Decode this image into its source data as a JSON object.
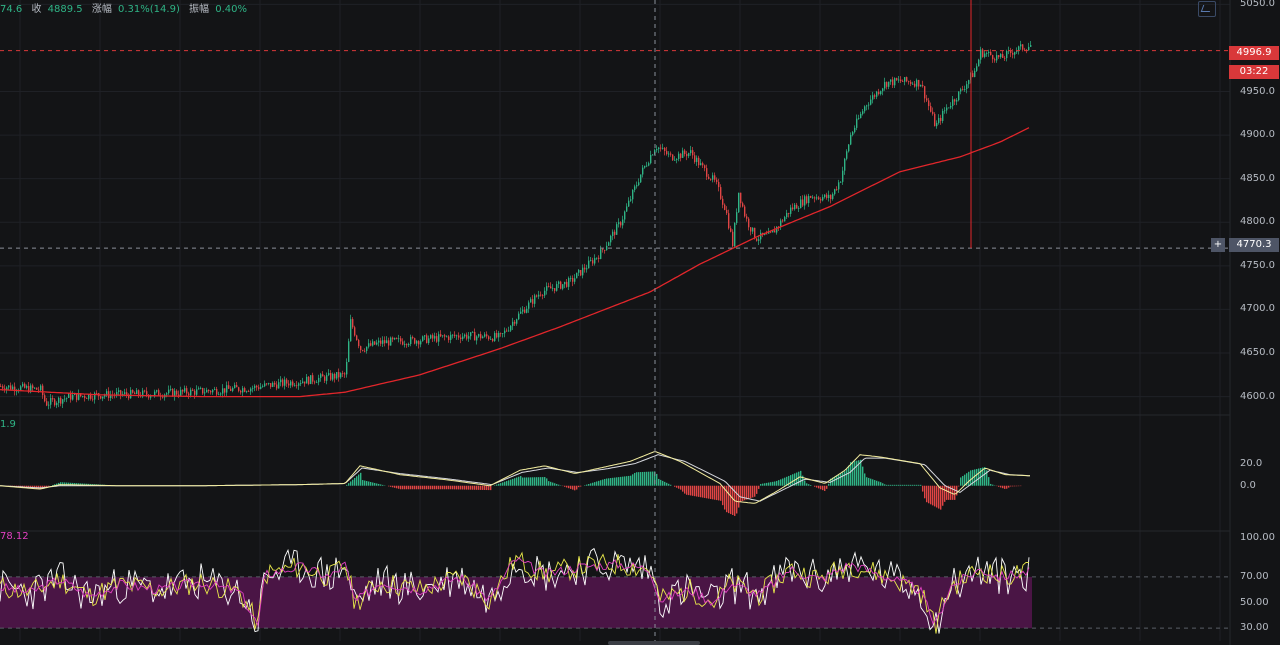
{
  "header": {
    "open_frag": "74.6",
    "close_label": "收",
    "close_value": "4889.5",
    "change_label": "涨幅",
    "change_value": "0.31%(14.9)",
    "amplitude_label": "振幅",
    "amplitude_value": "0.40%"
  },
  "colors": {
    "background": "#131416",
    "up": "#2fb486",
    "down": "#e04545",
    "ma_line": "#e2262b",
    "price_tag": "#d9383a",
    "crosshair_tag": "#4e5566",
    "macd_fast": "#f4eea0",
    "macd_slow": "#d7d9df",
    "rsi_band": "#4a1545",
    "rsi_line1": "#ffffff",
    "rsi_line2": "#e8e84a",
    "rsi_line3": "#e040c0"
  },
  "price_pane": {
    "ticks": [
      "5050.0",
      "4950.0",
      "4900.0",
      "4850.0",
      "4800.0",
      "4750.0",
      "4700.0",
      "4650.0",
      "4600.0"
    ],
    "current_price": "4996.9",
    "countdown": "03:22",
    "crosshair_price": "4770.3"
  },
  "macd_pane": {
    "value_label": "1.9",
    "ticks": [
      "20.0",
      "0.0"
    ]
  },
  "rsi_pane": {
    "value_label": "78.12",
    "ticks": [
      "100.00",
      "70.00",
      "50.00",
      "30.00"
    ]
  },
  "chart_data": [
    {
      "type": "candlestick",
      "name": "price",
      "ylim": [
        4580,
        5055
      ],
      "ticks": [
        5050,
        4950,
        4900,
        4850,
        4800,
        4750,
        4700,
        4650,
        4600
      ],
      "anchors": [
        [
          0,
          4612
        ],
        [
          40,
          4608
        ],
        [
          45,
          4592
        ],
        [
          70,
          4600
        ],
        [
          100,
          4602
        ],
        [
          150,
          4603
        ],
        [
          200,
          4606
        ],
        [
          250,
          4610
        ],
        [
          300,
          4618
        ],
        [
          345,
          4625
        ],
        [
          350,
          4686
        ],
        [
          360,
          4655
        ],
        [
          380,
          4662
        ],
        [
          420,
          4665
        ],
        [
          460,
          4670
        ],
        [
          500,
          4668
        ],
        [
          515,
          4690
        ],
        [
          540,
          4720
        ],
        [
          570,
          4732
        ],
        [
          600,
          4765
        ],
        [
          620,
          4800
        ],
        [
          640,
          4855
        ],
        [
          655,
          4888
        ],
        [
          670,
          4875
        ],
        [
          690,
          4880
        ],
        [
          700,
          4865
        ],
        [
          715,
          4845
        ],
        [
          725,
          4815
        ],
        [
          732,
          4775
        ],
        [
          738,
          4835
        ],
        [
          745,
          4805
        ],
        [
          755,
          4782
        ],
        [
          770,
          4785
        ],
        [
          790,
          4815
        ],
        [
          810,
          4830
        ],
        [
          830,
          4828
        ],
        [
          840,
          4850
        ],
        [
          850,
          4900
        ],
        [
          865,
          4935
        ],
        [
          885,
          4960
        ],
        [
          900,
          4962
        ],
        [
          920,
          4960
        ],
        [
          935,
          4910
        ],
        [
          945,
          4930
        ],
        [
          960,
          4950
        ],
        [
          975,
          4975
        ],
        [
          980,
          4995
        ],
        [
          990,
          4992
        ],
        [
          1000,
          4988
        ],
        [
          1015,
          4998
        ],
        [
          1030,
          5003
        ]
      ],
      "ma_anchors": [
        [
          0,
          4608
        ],
        [
          100,
          4602
        ],
        [
          200,
          4600
        ],
        [
          300,
          4600
        ],
        [
          345,
          4605
        ],
        [
          420,
          4625
        ],
        [
          500,
          4655
        ],
        [
          560,
          4680
        ],
        [
          650,
          4720
        ],
        [
          700,
          4752
        ],
        [
          760,
          4785
        ],
        [
          830,
          4818
        ],
        [
          900,
          4858
        ],
        [
          960,
          4875
        ],
        [
          1000,
          4892
        ],
        [
          1030,
          4909
        ]
      ],
      "current_price": 4996.9,
      "crosshair_price": 4770.3
    },
    {
      "type": "macd",
      "name": "macd",
      "ylim": [
        -40,
        63
      ],
      "ticks": [
        20,
        0
      ],
      "fast_anchors": [
        [
          0,
          0
        ],
        [
          40,
          -3
        ],
        [
          60,
          1
        ],
        [
          120,
          0
        ],
        [
          200,
          0
        ],
        [
          300,
          1
        ],
        [
          345,
          2
        ],
        [
          360,
          18
        ],
        [
          400,
          10
        ],
        [
          450,
          5
        ],
        [
          490,
          0
        ],
        [
          520,
          14
        ],
        [
          545,
          18
        ],
        [
          575,
          11
        ],
        [
          600,
          16
        ],
        [
          630,
          22
        ],
        [
          655,
          31
        ],
        [
          680,
          22
        ],
        [
          720,
          2
        ],
        [
          735,
          -14
        ],
        [
          755,
          -16
        ],
        [
          775,
          -6
        ],
        [
          800,
          8
        ],
        [
          825,
          2
        ],
        [
          845,
          14
        ],
        [
          860,
          28
        ],
        [
          880,
          26
        ],
        [
          920,
          20
        ],
        [
          940,
          -2
        ],
        [
          955,
          -8
        ],
        [
          970,
          5
        ],
        [
          985,
          16
        ],
        [
          1005,
          10
        ],
        [
          1030,
          9
        ]
      ],
      "slow_anchors": [
        [
          0,
          0
        ],
        [
          40,
          -2
        ],
        [
          60,
          0
        ],
        [
          120,
          0
        ],
        [
          200,
          0
        ],
        [
          300,
          1
        ],
        [
          345,
          2
        ],
        [
          362,
          16
        ],
        [
          400,
          11
        ],
        [
          450,
          6
        ],
        [
          492,
          1
        ],
        [
          522,
          12
        ],
        [
          548,
          16
        ],
        [
          578,
          12
        ],
        [
          605,
          15
        ],
        [
          635,
          20
        ],
        [
          658,
          28
        ],
        [
          685,
          22
        ],
        [
          725,
          4
        ],
        [
          740,
          -10
        ],
        [
          760,
          -14
        ],
        [
          780,
          -5
        ],
        [
          805,
          6
        ],
        [
          830,
          3
        ],
        [
          850,
          12
        ],
        [
          865,
          25
        ],
        [
          885,
          25
        ],
        [
          925,
          19
        ],
        [
          945,
          0
        ],
        [
          960,
          -6
        ],
        [
          975,
          4
        ],
        [
          990,
          14
        ],
        [
          1010,
          10
        ],
        [
          1030,
          9
        ]
      ]
    },
    {
      "type": "rsi",
      "name": "rsi",
      "ylim": [
        20,
        105
      ],
      "ticks": [
        100,
        70,
        50,
        30
      ],
      "band": [
        30,
        70
      ],
      "anchors": [
        [
          0,
          62
        ],
        [
          30,
          58
        ],
        [
          60,
          68
        ],
        [
          90,
          55
        ],
        [
          120,
          64
        ],
        [
          160,
          60
        ],
        [
          200,
          66
        ],
        [
          240,
          58
        ],
        [
          258,
          32
        ],
        [
          265,
          72
        ],
        [
          300,
          78
        ],
        [
          330,
          70
        ],
        [
          345,
          80
        ],
        [
          355,
          50
        ],
        [
          380,
          66
        ],
        [
          420,
          60
        ],
        [
          460,
          70
        ],
        [
          490,
          52
        ],
        [
          515,
          84
        ],
        [
          545,
          72
        ],
        [
          580,
          78
        ],
        [
          620,
          80
        ],
        [
          650,
          76
        ],
        [
          660,
          52
        ],
        [
          690,
          60
        ],
        [
          715,
          50
        ],
        [
          730,
          65
        ],
        [
          760,
          56
        ],
        [
          790,
          76
        ],
        [
          820,
          68
        ],
        [
          850,
          80
        ],
        [
          880,
          72
        ],
        [
          920,
          60
        ],
        [
          935,
          32
        ],
        [
          950,
          62
        ],
        [
          980,
          76
        ],
        [
          1000,
          70
        ],
        [
          1030,
          74
        ]
      ],
      "current_value": 78.12
    }
  ]
}
